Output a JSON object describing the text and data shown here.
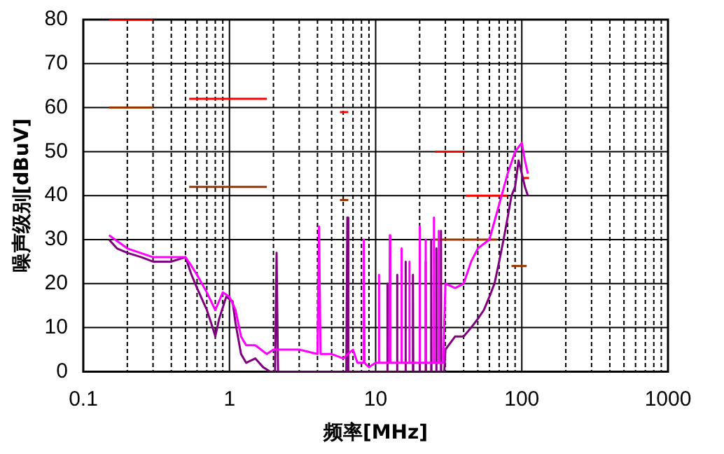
{
  "chart_data": {
    "type": "line",
    "xlabel": "频率[MHz]",
    "ylabel": "噪声级别[dBuV]",
    "log": "x",
    "xlim": [
      0.1,
      1000
    ],
    "ylim": [
      0,
      80
    ],
    "yticks": [
      0,
      10,
      20,
      30,
      40,
      50,
      60,
      70,
      80
    ],
    "xticks": [
      {
        "value": 0.1,
        "label": "0.1"
      },
      {
        "value": 0.2,
        "label": null
      },
      {
        "value": 0.3,
        "label": null
      },
      {
        "value": 0.4,
        "label": null
      },
      {
        "value": 0.5,
        "label": null
      },
      {
        "value": 0.6,
        "label": null
      },
      {
        "value": 0.7,
        "label": null
      },
      {
        "value": 0.8,
        "label": null
      },
      {
        "value": 0.9,
        "label": null
      },
      1,
      {
        "value": 2,
        "label": null
      },
      {
        "value": 3,
        "label": null
      },
      {
        "value": 4,
        "label": null
      },
      {
        "value": 5,
        "label": null
      },
      {
        "value": 6,
        "label": null
      },
      {
        "value": 7,
        "label": null
      },
      {
        "value": 8,
        "label": null
      },
      {
        "value": 9,
        "label": null
      },
      10,
      {
        "value": 20,
        "label": null
      },
      {
        "value": 30,
        "label": null
      },
      {
        "value": 40,
        "label": null
      },
      {
        "value": 50,
        "label": null
      },
      {
        "value": 60,
        "label": null
      },
      {
        "value": 70,
        "label": null
      },
      {
        "value": 80,
        "label": null
      },
      {
        "value": 90,
        "label": null
      },
      100,
      {
        "value": 200,
        "label": null
      },
      {
        "value": 300,
        "label": null
      },
      {
        "value": 400,
        "label": null
      },
      {
        "value": 500,
        "label": null
      },
      {
        "value": 600,
        "label": null
      },
      {
        "value": 700,
        "label": null
      },
      {
        "value": 800,
        "label": null
      },
      {
        "value": 900,
        "label": null
      },
      1000
    ],
    "grid": true,
    "legend": false,
    "marker": "none",
    "line_style": "solid",
    "series": [
      {
        "color": "#ff00ff",
        "x": [
          0.15,
          0.2,
          0.3,
          0.4,
          0.5,
          0.55,
          0.6,
          0.7,
          0.8,
          0.9,
          1.0,
          1.1,
          1.2,
          1.3,
          1.5,
          1.8,
          2,
          3,
          4,
          4.1,
          4.2,
          5,
          6,
          7,
          7.5,
          8.2,
          8.3,
          8.4,
          9,
          10,
          10.4,
          10.5,
          10.6,
          12.4,
          12.5,
          12.6,
          14.9,
          15,
          15.1,
          16.9,
          17,
          17.1,
          19.9,
          20,
          20.1,
          21.9,
          22,
          22.1,
          24.9,
          25,
          25.1,
          26.9,
          27,
          27.1,
          29,
          30,
          35,
          40,
          45,
          50,
          60,
          70,
          80,
          90,
          100,
          105,
          110
        ],
        "values": [
          31,
          28,
          26,
          26,
          26,
          24,
          22,
          18,
          14,
          18,
          17,
          14,
          8,
          6,
          6,
          4,
          5,
          5,
          4,
          33,
          4,
          4,
          3,
          5,
          2,
          2,
          30,
          2,
          1,
          2,
          2,
          22,
          2,
          2,
          31,
          2,
          2,
          28,
          2,
          2,
          25,
          2,
          2,
          33,
          2,
          2,
          30,
          2,
          2,
          35,
          2,
          2,
          32,
          2,
          2,
          20,
          19,
          20,
          25,
          28,
          30,
          38,
          45,
          50,
          52,
          48,
          45
        ]
      },
      {
        "color": "#800080",
        "x": [
          0.15,
          0.17,
          0.2,
          0.25,
          0.3,
          0.4,
          0.5,
          0.55,
          0.6,
          0.7,
          0.75,
          0.8,
          0.85,
          0.95,
          1.05,
          1.1,
          1.2,
          1.3,
          1.5,
          1.7,
          1.9,
          2.05,
          2.1,
          2.15,
          2.5,
          6.3,
          6.4,
          6.5,
          11.9,
          12,
          12.1,
          13.9,
          14,
          14.1,
          15.9,
          16,
          16.1,
          17.9,
          18,
          18.1,
          19.9,
          20,
          20.1,
          21.9,
          22,
          22.1,
          23.9,
          24,
          24.1,
          25.9,
          26,
          26.1,
          27.9,
          28,
          28.1,
          29.5,
          30,
          35,
          40,
          45,
          50,
          55,
          60,
          65,
          70,
          75,
          80,
          85,
          90,
          95,
          100,
          105,
          110
        ],
        "values": [
          30,
          28,
          27,
          26,
          25,
          25,
          26,
          22,
          19,
          14,
          11,
          8,
          12,
          17,
          16,
          11,
          4,
          2,
          3,
          1,
          0,
          0,
          27,
          0,
          0,
          0,
          35,
          0,
          0,
          20,
          0,
          0,
          22,
          0,
          0,
          25,
          0,
          0,
          22,
          0,
          0,
          28,
          0,
          0,
          25,
          0,
          0,
          30,
          0,
          0,
          28,
          0,
          0,
          32,
          0,
          0,
          5,
          8,
          8,
          10,
          12,
          14,
          17,
          20,
          25,
          30,
          35,
          40,
          42,
          48,
          45,
          42,
          40
        ]
      },
      {
        "color": "#ff0000",
        "x": [
          0.15,
          0.3
        ],
        "values": [
          80,
          80
        ]
      },
      {
        "color": "#ff0000",
        "x": [
          0.53,
          1.8
        ],
        "values": [
          62,
          62
        ]
      },
      {
        "color": "#ff0000",
        "x": [
          5.7,
          6.5
        ],
        "values": [
          59,
          59
        ]
      },
      {
        "color": "#ff0000",
        "x": [
          25.5,
          41
        ],
        "values": [
          50,
          50
        ]
      },
      {
        "color": "#ff0000",
        "x": [
          41.3,
          79.8
        ],
        "values": [
          40,
          40
        ]
      },
      {
        "color": "#ff0000",
        "x": [
          100,
          112
        ],
        "values": [
          44,
          44
        ]
      },
      {
        "color": "#993300",
        "x": [
          0.15,
          0.3
        ],
        "values": [
          60,
          60
        ]
      },
      {
        "color": "#993300",
        "x": [
          0.53,
          1.8
        ],
        "values": [
          42,
          42
        ]
      },
      {
        "color": "#993300",
        "x": [
          5.7,
          6.5
        ],
        "values": [
          39,
          39
        ]
      },
      {
        "color": "#993300",
        "x": [
          25.5,
          68
        ],
        "values": [
          30,
          30
        ]
      },
      {
        "color": "#993300",
        "x": [
          85,
          108
        ],
        "values": [
          24,
          24
        ]
      }
    ]
  }
}
